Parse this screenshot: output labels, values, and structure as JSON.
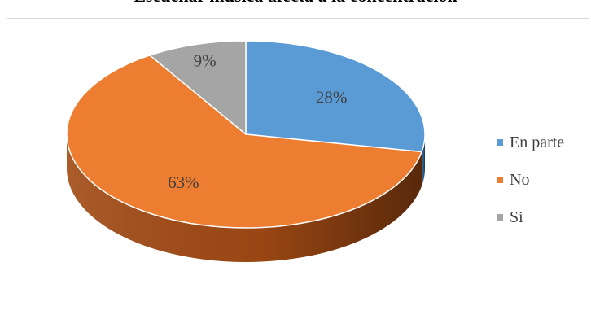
{
  "chart_data": {
    "type": "pie",
    "title": "Escuchar música afecta a la concentración",
    "categories": [
      "En parte",
      "No",
      "Si"
    ],
    "values": [
      28,
      63,
      9
    ],
    "value_labels": [
      "28%",
      "63%",
      "9%"
    ],
    "colors": [
      "#5b9bd5",
      "#ed7d31",
      "#a5a5a5"
    ],
    "side_colors": [
      "#2e5f8f",
      "#a14a14",
      "#6e6e6e"
    ],
    "legend_position": "right",
    "style": "3d"
  }
}
